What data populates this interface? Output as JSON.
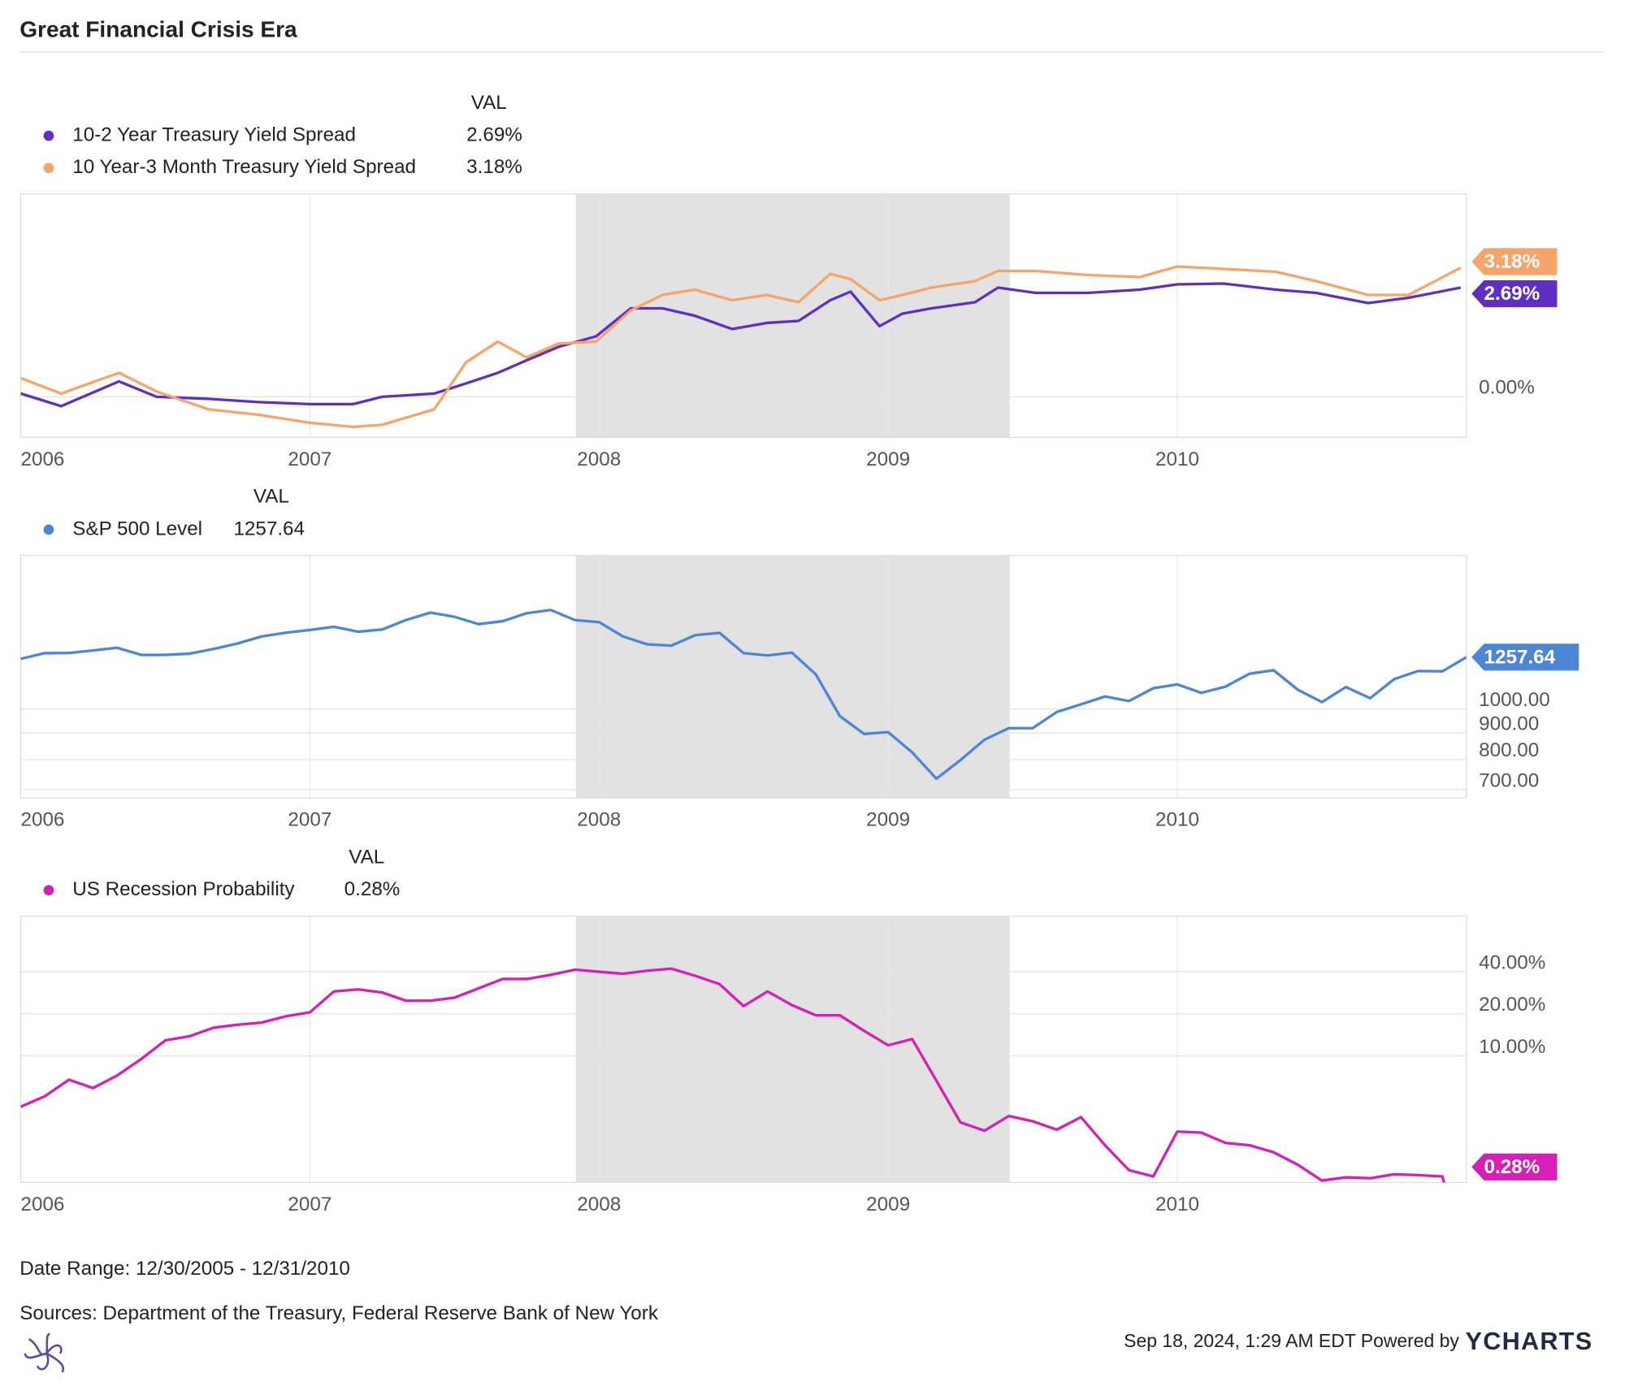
{
  "title": "Great Financial Crisis Era",
  "chart_data": [
    {
      "type": "line",
      "legend_header": "VAL",
      "log_scale": false,
      "grid": true,
      "xlim": [
        2006,
        2011
      ],
      "xticks": [
        2006,
        2007,
        2008,
        2009,
        2010
      ],
      "ylim": [
        -1,
        5
      ],
      "yticks": [
        {
          "value": 0,
          "label": "0.00%"
        }
      ],
      "shaded_ranges": [
        [
          2007.92,
          2009.42
        ]
      ],
      "x": [
        2006.0,
        2006.14,
        2006.34,
        2006.47,
        2006.65,
        2006.82,
        2007.0,
        2007.15,
        2007.25,
        2007.43,
        2007.54,
        2007.65,
        2007.75,
        2007.86,
        2007.99,
        2008.11,
        2008.22,
        2008.33,
        2008.46,
        2008.58,
        2008.69,
        2008.8,
        2008.87,
        2008.97,
        2009.05,
        2009.15,
        2009.3,
        2009.38,
        2009.51,
        2009.69,
        2009.87,
        2010.0,
        2010.16,
        2010.34,
        2010.48,
        2010.66,
        2010.8,
        2010.98
      ],
      "series": [
        {
          "name": "10-2 Year Treasury Yield Spread",
          "color": "#5f2fc4",
          "latest_label": "2.69%",
          "values": [
            0.08,
            -0.23,
            0.38,
            0,
            -0.05,
            -0.13,
            -0.18,
            -0.18,
            0,
            0.08,
            0.33,
            0.59,
            0.9,
            1.23,
            1.49,
            2.18,
            2.18,
            2.0,
            1.67,
            1.82,
            1.87,
            2.38,
            2.59,
            1.74,
            2.05,
            2.18,
            2.33,
            2.69,
            2.56,
            2.56,
            2.64,
            2.77,
            2.79,
            2.64,
            2.56,
            2.31,
            2.44,
            2.69
          ]
        },
        {
          "name": "10 Year-3 Month Treasury Yield Spread",
          "color": "#f7a46b",
          "latest_label": "3.18%",
          "values": [
            0.46,
            0.08,
            0.59,
            0.13,
            -0.31,
            -0.44,
            -0.64,
            -0.74,
            -0.69,
            -0.31,
            0.85,
            1.36,
            0.97,
            1.31,
            1.36,
            2.13,
            2.51,
            2.64,
            2.38,
            2.51,
            2.33,
            3.03,
            2.9,
            2.38,
            2.51,
            2.69,
            2.85,
            3.1,
            3.1,
            3.0,
            2.95,
            3.21,
            3.15,
            3.08,
            2.85,
            2.51,
            2.51,
            3.18
          ]
        }
      ]
    },
    {
      "type": "line",
      "legend_header": "VAL",
      "log_scale": true,
      "grid": true,
      "xlim": [
        2006,
        2011
      ],
      "xticks": [
        2006,
        2007,
        2008,
        2009,
        2010
      ],
      "ylim": [
        675,
        1970
      ],
      "yticks": [
        {
          "value": 1000,
          "label": "1000.00"
        },
        {
          "value": 900,
          "label": "900.00"
        },
        {
          "value": 800,
          "label": "800.00"
        },
        {
          "value": 700,
          "label": "700.00"
        }
      ],
      "shaded_ranges": [
        [
          2007.92,
          2009.42
        ]
      ],
      "x": [
        2006.0,
        2006.083,
        2006.167,
        2006.25,
        2006.333,
        2006.417,
        2006.5,
        2006.583,
        2006.667,
        2006.75,
        2006.833,
        2006.917,
        2007.0,
        2007.083,
        2007.167,
        2007.25,
        2007.333,
        2007.417,
        2007.5,
        2007.583,
        2007.667,
        2007.75,
        2007.833,
        2007.917,
        2008.0,
        2008.083,
        2008.167,
        2008.25,
        2008.333,
        2008.417,
        2008.5,
        2008.583,
        2008.667,
        2008.75,
        2008.833,
        2008.917,
        2009.0,
        2009.083,
        2009.167,
        2009.25,
        2009.333,
        2009.417,
        2009.5,
        2009.583,
        2009.667,
        2009.75,
        2009.833,
        2009.917,
        2010.0,
        2010.083,
        2010.167,
        2010.25,
        2010.333,
        2010.417,
        2010.5,
        2010.583,
        2010.667,
        2010.75,
        2010.833,
        2010.917,
        2011.0
      ],
      "series": [
        {
          "name": "S&P 500 Level",
          "color": "#4e86d6",
          "latest_label": "1257.64",
          "values": [
            1248.29,
            1280,
            1281,
            1295,
            1311,
            1270,
            1270,
            1277,
            1304,
            1336,
            1378,
            1401,
            1418,
            1438,
            1407,
            1421,
            1482,
            1531,
            1503,
            1455,
            1474,
            1527,
            1549,
            1481,
            1468,
            1378,
            1331,
            1323,
            1386,
            1400,
            1280,
            1267,
            1283,
            1165,
            969,
            896,
            903,
            826,
            735,
            798,
            873,
            919,
            919,
            987,
            1021,
            1057,
            1036,
            1096,
            1115,
            1074,
            1104,
            1169,
            1187,
            1089,
            1031,
            1102,
            1049,
            1141,
            1183,
            1181,
            1257.64
          ]
        }
      ]
    },
    {
      "type": "line",
      "legend_header": "VAL",
      "log_scale": true,
      "grid": true,
      "xlim": [
        2006,
        2011
      ],
      "xticks": [
        2006,
        2007,
        2008,
        2009,
        2010
      ],
      "ylim": [
        1.24,
        100
      ],
      "yticks": [
        {
          "value": 40,
          "label": "40.00%"
        },
        {
          "value": 20,
          "label": "20.00%"
        },
        {
          "value": 10,
          "label": "10.00%"
        }
      ],
      "shaded_ranges": [
        [
          2007.92,
          2009.42
        ]
      ],
      "x": [
        2006.0,
        2006.083,
        2006.167,
        2006.25,
        2006.333,
        2006.417,
        2006.5,
        2006.583,
        2006.667,
        2006.75,
        2006.833,
        2006.917,
        2007.0,
        2007.083,
        2007.167,
        2007.25,
        2007.333,
        2007.417,
        2007.5,
        2007.583,
        2007.667,
        2007.75,
        2007.833,
        2007.917,
        2008.0,
        2008.083,
        2008.167,
        2008.25,
        2008.333,
        2008.417,
        2008.5,
        2008.583,
        2008.667,
        2008.75,
        2008.833,
        2008.917,
        2009.0,
        2009.083,
        2009.167,
        2009.25,
        2009.333,
        2009.417,
        2009.5,
        2009.583,
        2009.667,
        2009.75,
        2009.833,
        2009.917,
        2010.0,
        2010.083,
        2010.167,
        2010.25,
        2010.333,
        2010.417,
        2010.5,
        2010.583,
        2010.667,
        2010.75,
        2010.833,
        2010.917,
        2011.0
      ],
      "series": [
        {
          "name": "US Recession Probability",
          "color": "#d61fb5",
          "latest_label": "0.28%",
          "values": [
            4.32,
            5.13,
            6.75,
            5.88,
            7.22,
            9.5,
            12.9,
            13.8,
            15.9,
            16.7,
            17.3,
            19.2,
            20.5,
            28.9,
            29.9,
            28.4,
            24.8,
            24.8,
            26.1,
            30.4,
            35.5,
            35.5,
            38.0,
            41.4,
            40.0,
            38.7,
            40.7,
            42.1,
            37.4,
            32.6,
            22.7,
            28.9,
            23.1,
            19.5,
            19.5,
            15.1,
            11.9,
            13.2,
            6.63,
            3.34,
            2.91,
            3.71,
            3.4,
            2.96,
            3.64,
            2.29,
            1.52,
            1.37,
            2.87,
            2.82,
            2.38,
            2.29,
            2.04,
            1.66,
            1.28,
            1.35,
            1.33,
            1.42,
            1.4,
            1.37,
            0.28
          ]
        }
      ]
    }
  ],
  "footer": {
    "date_range": "Date Range: 12/30/2005 - 12/31/2010",
    "sources": "Sources: Department of the Treasury, Federal Reserve Bank of New York",
    "timestamp": "Sep 18, 2024, 1:29 AM EDT Powered by",
    "brand": "YCHARTS"
  }
}
